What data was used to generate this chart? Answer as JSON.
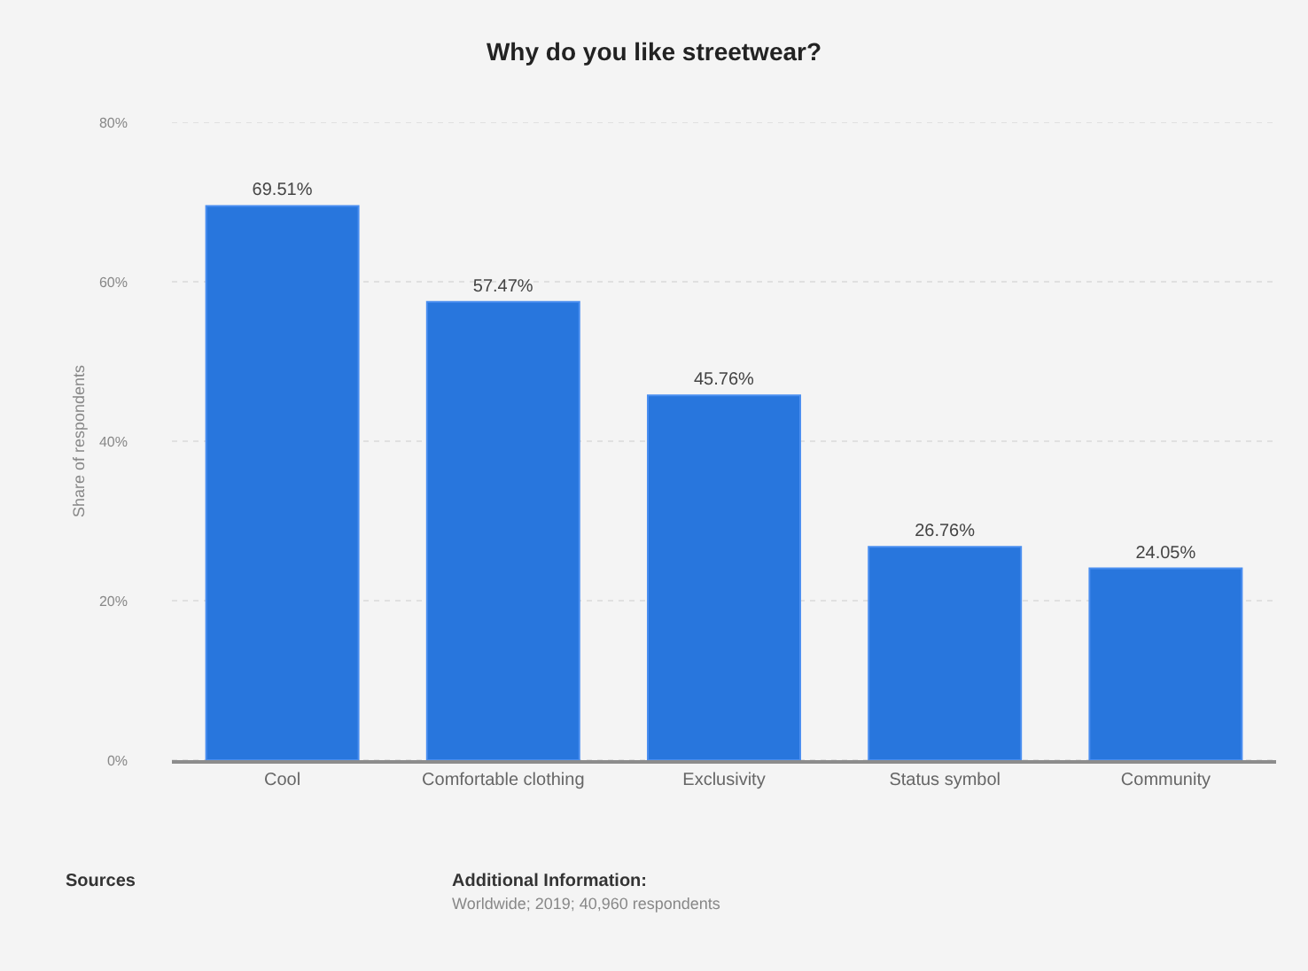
{
  "chart_data": {
    "type": "bar",
    "title": "Why do you like streetwear?",
    "ylabel": "Share of respondents",
    "categories": [
      "Cool",
      "Comfortable clothing",
      "Exclusivity",
      "Status symbol",
      "Community"
    ],
    "values": [
      69.51,
      57.47,
      45.76,
      26.76,
      24.05
    ],
    "color": "#2876dd",
    "value_labels": [
      "69.51%",
      "57.47%",
      "45.76%",
      "26.76%",
      "24.05%"
    ],
    "ylim": [
      0,
      80
    ],
    "yticks": [
      {
        "value": 0,
        "label": "0%"
      },
      {
        "value": 20,
        "label": "20%"
      },
      {
        "value": 40,
        "label": "40%"
      },
      {
        "value": 60,
        "label": "60%"
      },
      {
        "value": 80,
        "label": "80%"
      }
    ],
    "grid": "y",
    "legend": false,
    "annotations": [
      "Sources",
      "Additional Information:",
      "Worldwide; 2019; 40,960 respondents"
    ]
  }
}
